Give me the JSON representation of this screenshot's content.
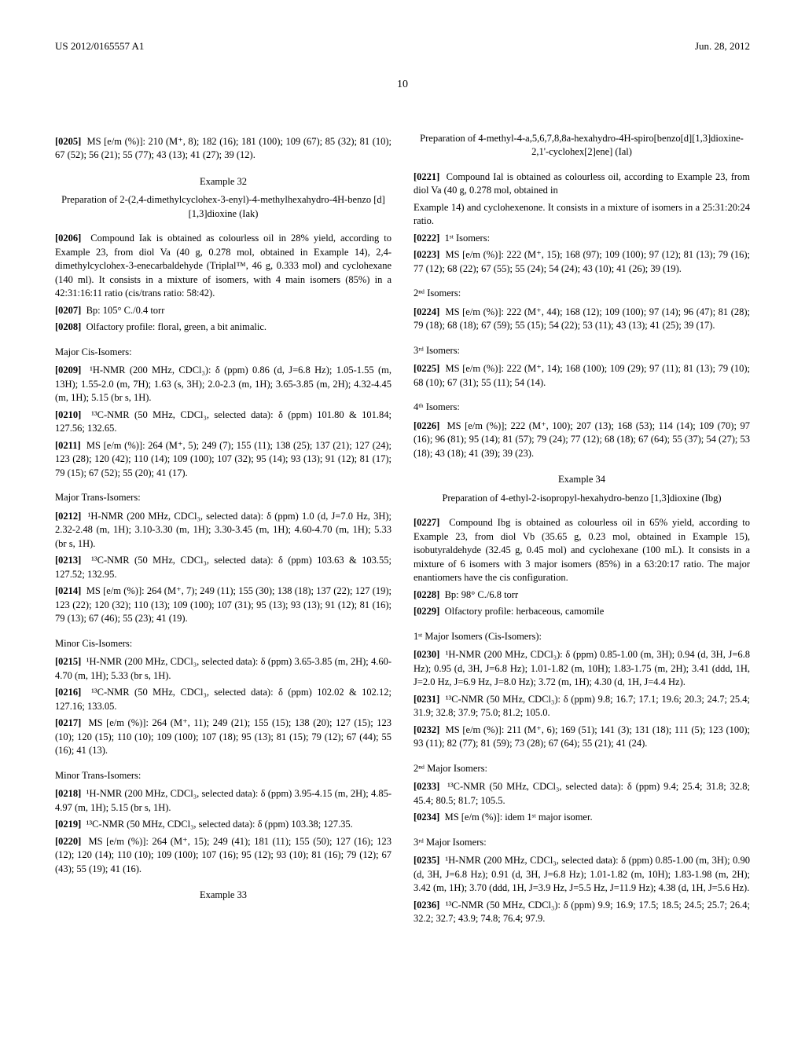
{
  "header": {
    "left": "US 2012/0165557 A1",
    "right": "Jun. 28, 2012"
  },
  "page_number": "10",
  "col1": {
    "p0205": "MS [e/m (%)]: 210 (M⁺, 8); 182 (16); 181 (100); 109 (67); 85 (32); 81 (10); 67 (52); 56 (21); 55 (77); 43 (13); 41 (27); 39 (12).",
    "ex32_label": "Example 32",
    "ex32_title": "Preparation of 2-(2,4-dimethylcyclohex-3-enyl)-4-methylhexahydro-4H-benzo [d][1,3]dioxine (Iak)",
    "p0206": "Compound Iak is obtained as colourless oil in 28% yield, according to Example 23, from diol Va (40 g, 0.278 mol, obtained in Example 14), 2,4-dimethylcyclohex-3-enecarbaldehyde (Triplal™, 46 g, 0.333 mol) and cyclohexane (140 ml). It consists in a mixture of isomers, with 4 main isomers (85%) in a 42:31:16:11 ratio (cis/trans ratio: 58:42).",
    "p0207": "Bp:  105° C./0.4 torr",
    "p0208": "Olfactory profile: floral, green, a bit animalic.",
    "major_cis": "Major Cis-Isomers:",
    "p0209": "¹H-NMR (200 MHz, CDCl₃): δ (ppm) 0.86 (d, J=6.8 Hz); 1.05-1.55 (m, 13H); 1.55-2.0 (m, 7H); 1.63 (s, 3H); 2.0-2.3 (m, 1H); 3.65-3.85 (m, 2H); 4.32-4.45 (m, 1H); 5.15 (br s, 1H).",
    "p0210": "¹³C-NMR (50 MHz, CDCl₃, selected data): δ (ppm) 101.80 & 101.84; 127.56; 132.65.",
    "p0211": "MS [e/m (%)]: 264 (M⁺, 5); 249 (7); 155 (11); 138 (25); 137 (21); 127 (24); 123 (28); 120 (42); 110 (14); 109 (100); 107 (32); 95 (14); 93 (13); 91 (12); 81 (17); 79 (15); 67 (52); 55 (20); 41 (17).",
    "major_trans": "Major Trans-Isomers:",
    "p0212": "¹H-NMR (200 MHz, CDCl₃, selected data): δ (ppm) 1.0 (d, J=7.0 Hz, 3H); 2.32-2.48 (m, 1H); 3.10-3.30 (m, 1H); 3.30-3.45 (m, 1H); 4.60-4.70 (m, 1H); 5.33 (br s, 1H).",
    "p0213": "¹³C-NMR (50 MHz, CDCl₃, selected data): δ (ppm) 103.63 & 103.55; 127.52; 132.95.",
    "p0214": "MS [e/m (%)]: 264 (M⁺, 7); 249 (11); 155 (30); 138 (18); 137 (22); 127 (19); 123 (22); 120 (32); 110 (13); 109 (100); 107 (31); 95 (13); 93 (13); 91 (12); 81 (16); 79 (13); 67 (46); 55 (23); 41 (19).",
    "minor_cis": "Minor Cis-Isomers:",
    "p0215": "¹H-NMR (200 MHz, CDCl₃, selected data): δ (ppm) 3.65-3.85 (m, 2H); 4.60-4.70 (m, 1H); 5.33 (br s, 1H).",
    "p0216": "¹³C-NMR (50 MHz, CDCl₃, selected data): δ (ppm) 102.02 & 102.12; 127.16; 133.05.",
    "p0217": "MS [e/m (%)]: 264 (M⁺, 11); 249 (21); 155 (15); 138 (20); 127 (15); 123 (10); 120 (15); 110 (10); 109 (100); 107 (18); 95 (13); 81 (15); 79 (12); 67 (44); 55 (16); 41 (13).",
    "minor_trans": "Minor Trans-Isomers:",
    "p0218": "¹H-NMR (200 MHz, CDCl₃, selected data): δ (ppm) 3.95-4.15 (m, 2H); 4.85-4.97 (m, 1H); 5.15 (br s, 1H).",
    "p0219": "¹³C-NMR (50 MHz, CDCl₃, selected data): δ (ppm) 103.38; 127.35.",
    "p0220": "MS [e/m (%)]: 264 (M⁺, 15); 249 (41); 181 (11); 155 (50); 127 (16); 123 (12); 120 (14); 110 (10); 109 (100); 107 (16); 95 (12); 93 (10); 81 (16); 79 (12); 67 (43); 55 (19); 41 (16).",
    "ex33_label": "Example 33",
    "ex33_title": "Preparation of 4-methyl-4-a,5,6,7,8,8a-hexahydro-4H-spiro[benzo[d][1,3]dioxine-2,1'-cyclohex[2]ene] (Ial)",
    "p0221": "Compound Ial is obtained as colourless oil, according to Example 23, from diol Va (40 g, 0.278 mol, obtained in"
  },
  "col2": {
    "p0221b": "Example 14) and cyclohexenone. It consists in a mixture of isomers in a 25:31:20:24 ratio.",
    "p0222": "1ˢᵗ Isomers:",
    "p0223": "MS [e/m (%)]: 222 (M⁺, 15); 168 (97); 109 (100); 97 (12); 81 (13); 79 (16); 77 (12); 68 (22); 67 (55); 55 (24); 54 (24); 43 (10); 41 (26); 39 (19).",
    "iso2": "2ⁿᵈ Isomers:",
    "p0224": "MS [e/m (%)]: 222 (M⁺, 44); 168 (12); 109 (100); 97 (14); 96 (47); 81 (28); 79 (18); 68 (18); 67 (59); 55 (15); 54 (22); 53 (11); 43 (13); 41 (25); 39 (17).",
    "iso3": "3ʳᵈ Isomers:",
    "p0225": "MS [e/m (%)]: 222 (M⁺, 14); 168 (100); 109 (29); 97 (11); 81 (13); 79 (10); 68 (10); 67 (31); 55 (11); 54 (14).",
    "iso4": "4ᵗʰ Isomers:",
    "p0226": "MS [e/m (%)]; 222 (M⁺, 100); 207 (13); 168 (53); 114 (14); 109 (70); 97 (16); 96 (81); 95 (14); 81 (57); 79 (24); 77 (12); 68 (18); 67 (64); 55 (37); 54 (27); 53 (18); 43 (18); 41 (39); 39 (23).",
    "ex34_label": "Example 34",
    "ex34_title": "Preparation of 4-ethyl-2-isopropyl-hexahydro-benzo [1,3]dioxine (Ibg)",
    "p0227": "Compound Ibg is obtained as colourless oil in 65% yield, according to Example 23, from diol Vb (35.65 g, 0.23 mol, obtained in Example 15), isobutyraldehyde (32.45 g, 0.45 mol) and cyclohexane (100 mL). It consists in a mixture of 6 isomers with 3 major isomers (85%) in a 63:20:17 ratio. The major enantiomers have the cis configuration.",
    "p0228": "Bp:  98° C./6.8 torr",
    "p0229": "Olfactory profile: herbaceous, camomile",
    "maj1": "1ˢᵗ Major Isomers (Cis-Isomers):",
    "p0230": "¹H-NMR (200 MHz, CDCl₃): δ (ppm) 0.85-1.00 (m, 3H); 0.94 (d, 3H, J=6.8 Hz); 0.95 (d, 3H, J=6.8 Hz); 1.01-1.82 (m, 10H); 1.83-1.75 (m, 2H); 3.41 (ddd, 1H, J=2.0 Hz, J=6.9 Hz, J=8.0 Hz); 3.72 (m, 1H); 4.30 (d, 1H, J=4.4 Hz).",
    "p0231": "¹³C-NMR (50 MHz, CDCl₃): δ (ppm) 9.8; 16.7; 17.1; 19.6; 20.3; 24.7; 25.4; 31.9; 32.8; 37.9; 75.0; 81.2; 105.0.",
    "p0232": "MS [e/m (%)]: 211 (M⁺, 6); 169 (51); 141 (3); 131 (18); 111 (5); 123 (100); 93 (11); 82 (77); 81 (59); 73 (28); 67 (64); 55 (21); 41 (24).",
    "maj2": "2ⁿᵈ Major Isomers:",
    "p0233": "¹³C-NMR (50 MHz, CDCl₃, selected data): δ (ppm) 9.4; 25.4; 31.8; 32.8; 45.4; 80.5; 81.7; 105.5.",
    "p0234": "MS [e/m (%)]: idem 1ˢᵗ major isomer.",
    "maj3": "3ʳᵈ Major Isomers:",
    "p0235": "¹H-NMR (200 MHz, CDCl₃, selected data): δ (ppm) 0.85-1.00 (m, 3H); 0.90 (d, 3H, J=6.8 Hz); 0.91 (d, 3H, J=6.8 Hz); 1.01-1.82 (m, 10H); 1.83-1.98 (m, 2H); 3.42 (m, 1H); 3.70 (ddd, 1H, J=3.9 Hz, J=5.5 Hz, J=11.9 Hz); 4.38 (d, 1H, J=5.6 Hz).",
    "p0236": "¹³C-NMR (50 MHz, CDCl₃): δ (ppm) 9.9; 16.9; 17.5; 18.5; 24.5; 25.7; 26.4; 32.2; 32.7; 43.9; 74.8; 76.4; 97.9."
  },
  "labels": {
    "r0205": "[0205]",
    "r0206": "[0206]",
    "r0207": "[0207]",
    "r0208": "[0208]",
    "r0209": "[0209]",
    "r0210": "[0210]",
    "r0211": "[0211]",
    "r0212": "[0212]",
    "r0213": "[0213]",
    "r0214": "[0214]",
    "r0215": "[0215]",
    "r0216": "[0216]",
    "r0217": "[0217]",
    "r0218": "[0218]",
    "r0219": "[0219]",
    "r0220": "[0220]",
    "r0221": "[0221]",
    "r0222": "[0222]",
    "r0223": "[0223]",
    "r0224": "[0224]",
    "r0225": "[0225]",
    "r0226": "[0226]",
    "r0227": "[0227]",
    "r0228": "[0228]",
    "r0229": "[0229]",
    "r0230": "[0230]",
    "r0231": "[0231]",
    "r0232": "[0232]",
    "r0233": "[0233]",
    "r0234": "[0234]",
    "r0235": "[0235]",
    "r0236": "[0236]"
  }
}
